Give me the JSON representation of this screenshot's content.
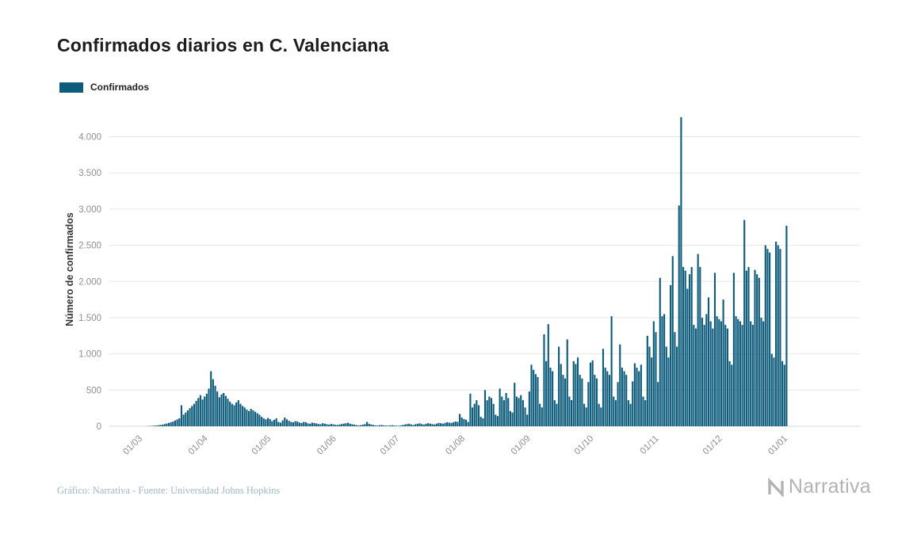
{
  "page": {
    "background": "#ffffff"
  },
  "header": {
    "title": "Confirmados diarios en C. Valenciana"
  },
  "legend": {
    "label": "Confirmados",
    "swatch_color": "#0e5c7c"
  },
  "footer": {
    "credit": "Gráfico: Narrativa - Fuente: Universidad Johns Hopkins",
    "logo_text": "Narrativa"
  },
  "chart_data": {
    "type": "bar",
    "title": "Confirmados diarios en C. Valenciana",
    "series_name": "Confirmados",
    "legend": [
      "Confirmados"
    ],
    "xlabel": "",
    "ylabel": "Número de confirmados",
    "ylim": [
      0,
      4400
    ],
    "grid": true,
    "legend_position": "top-left",
    "bar_color": "#0e5c7c",
    "grid_color": "#e7e7e7",
    "tick_label_color": "#8f8f8f",
    "y_tick_step": 500,
    "y_tick_labels": [
      "0",
      "500",
      "1.000",
      "1.500",
      "2.000",
      "2.500",
      "3.000",
      "3.500",
      "4.000"
    ],
    "x_tick_labels": [
      "01/03",
      "01/04",
      "01/05",
      "01/06",
      "01/07",
      "01/08",
      "01/09",
      "01/10",
      "01/11",
      "01/12",
      "01/01"
    ],
    "x_tick_days": [
      0,
      31,
      61,
      92,
      122,
      153,
      184,
      214,
      245,
      275,
      306
    ],
    "x_unit": "day",
    "peak_value": 4270,
    "values": [
      0,
      0,
      2,
      3,
      5,
      8,
      10,
      14,
      18,
      22,
      30,
      38,
      46,
      55,
      65,
      80,
      95,
      110,
      290,
      160,
      190,
      220,
      250,
      280,
      310,
      350,
      390,
      430,
      370,
      410,
      450,
      520,
      760,
      650,
      560,
      480,
      400,
      440,
      460,
      420,
      380,
      340,
      310,
      290,
      330,
      360,
      310,
      280,
      260,
      230,
      210,
      240,
      220,
      200,
      180,
      160,
      130,
      110,
      95,
      115,
      100,
      70,
      90,
      110,
      60,
      50,
      80,
      120,
      95,
      75,
      60,
      55,
      70,
      65,
      50,
      45,
      60,
      55,
      40,
      35,
      50,
      45,
      38,
      30,
      28,
      42,
      35,
      28,
      22,
      32,
      26,
      20,
      18,
      24,
      30,
      36,
      42,
      48,
      35,
      28,
      22,
      16,
      12,
      15,
      22,
      30,
      60,
      34,
      24,
      18,
      12,
      10,
      15,
      18,
      12,
      10,
      8,
      12,
      15,
      10,
      8,
      6,
      12,
      18,
      24,
      30,
      36,
      24,
      18,
      28,
      34,
      40,
      30,
      24,
      35,
      42,
      36,
      30,
      24,
      36,
      46,
      42,
      36,
      46,
      56,
      50,
      46,
      56,
      66,
      60,
      170,
      120,
      100,
      90,
      60,
      450,
      260,
      310,
      360,
      290,
      130,
      110,
      500,
      360,
      410,
      390,
      310,
      160,
      140,
      520,
      410,
      360,
      460,
      390,
      210,
      190,
      600,
      410,
      390,
      430,
      360,
      260,
      160,
      480,
      850,
      780,
      720,
      680,
      310,
      260,
      1270,
      900,
      1410,
      810,
      760,
      360,
      310,
      1100,
      860,
      710,
      660,
      1200,
      410,
      360,
      900,
      860,
      950,
      710,
      660,
      310,
      260,
      610,
      880,
      910,
      710,
      660,
      310,
      260,
      1070,
      810,
      760,
      710,
      1520,
      410,
      360,
      610,
      1130,
      810,
      760,
      710,
      360,
      310,
      620,
      870,
      810,
      760,
      850,
      410,
      360,
      1250,
      1100,
      950,
      1450,
      1300,
      610,
      2050,
      1520,
      1550,
      1100,
      950,
      1950,
      2350,
      1300,
      1100,
      3050,
      4270,
      2200,
      2150,
      1900,
      2100,
      2200,
      1400,
      1350,
      2380,
      2200,
      1500,
      1400,
      1550,
      1780,
      1450,
      1350,
      2120,
      1520,
      1480,
      1450,
      1750,
      1400,
      1350,
      900,
      850,
      2120,
      1520,
      1480,
      1450,
      1400,
      2850,
      2150,
      2200,
      1450,
      1400,
      2160,
      2100,
      2050,
      1500,
      1450,
      2500,
      2450,
      2400,
      1000,
      950,
      2550,
      2500,
      2450,
      900,
      850,
      2770
    ]
  }
}
